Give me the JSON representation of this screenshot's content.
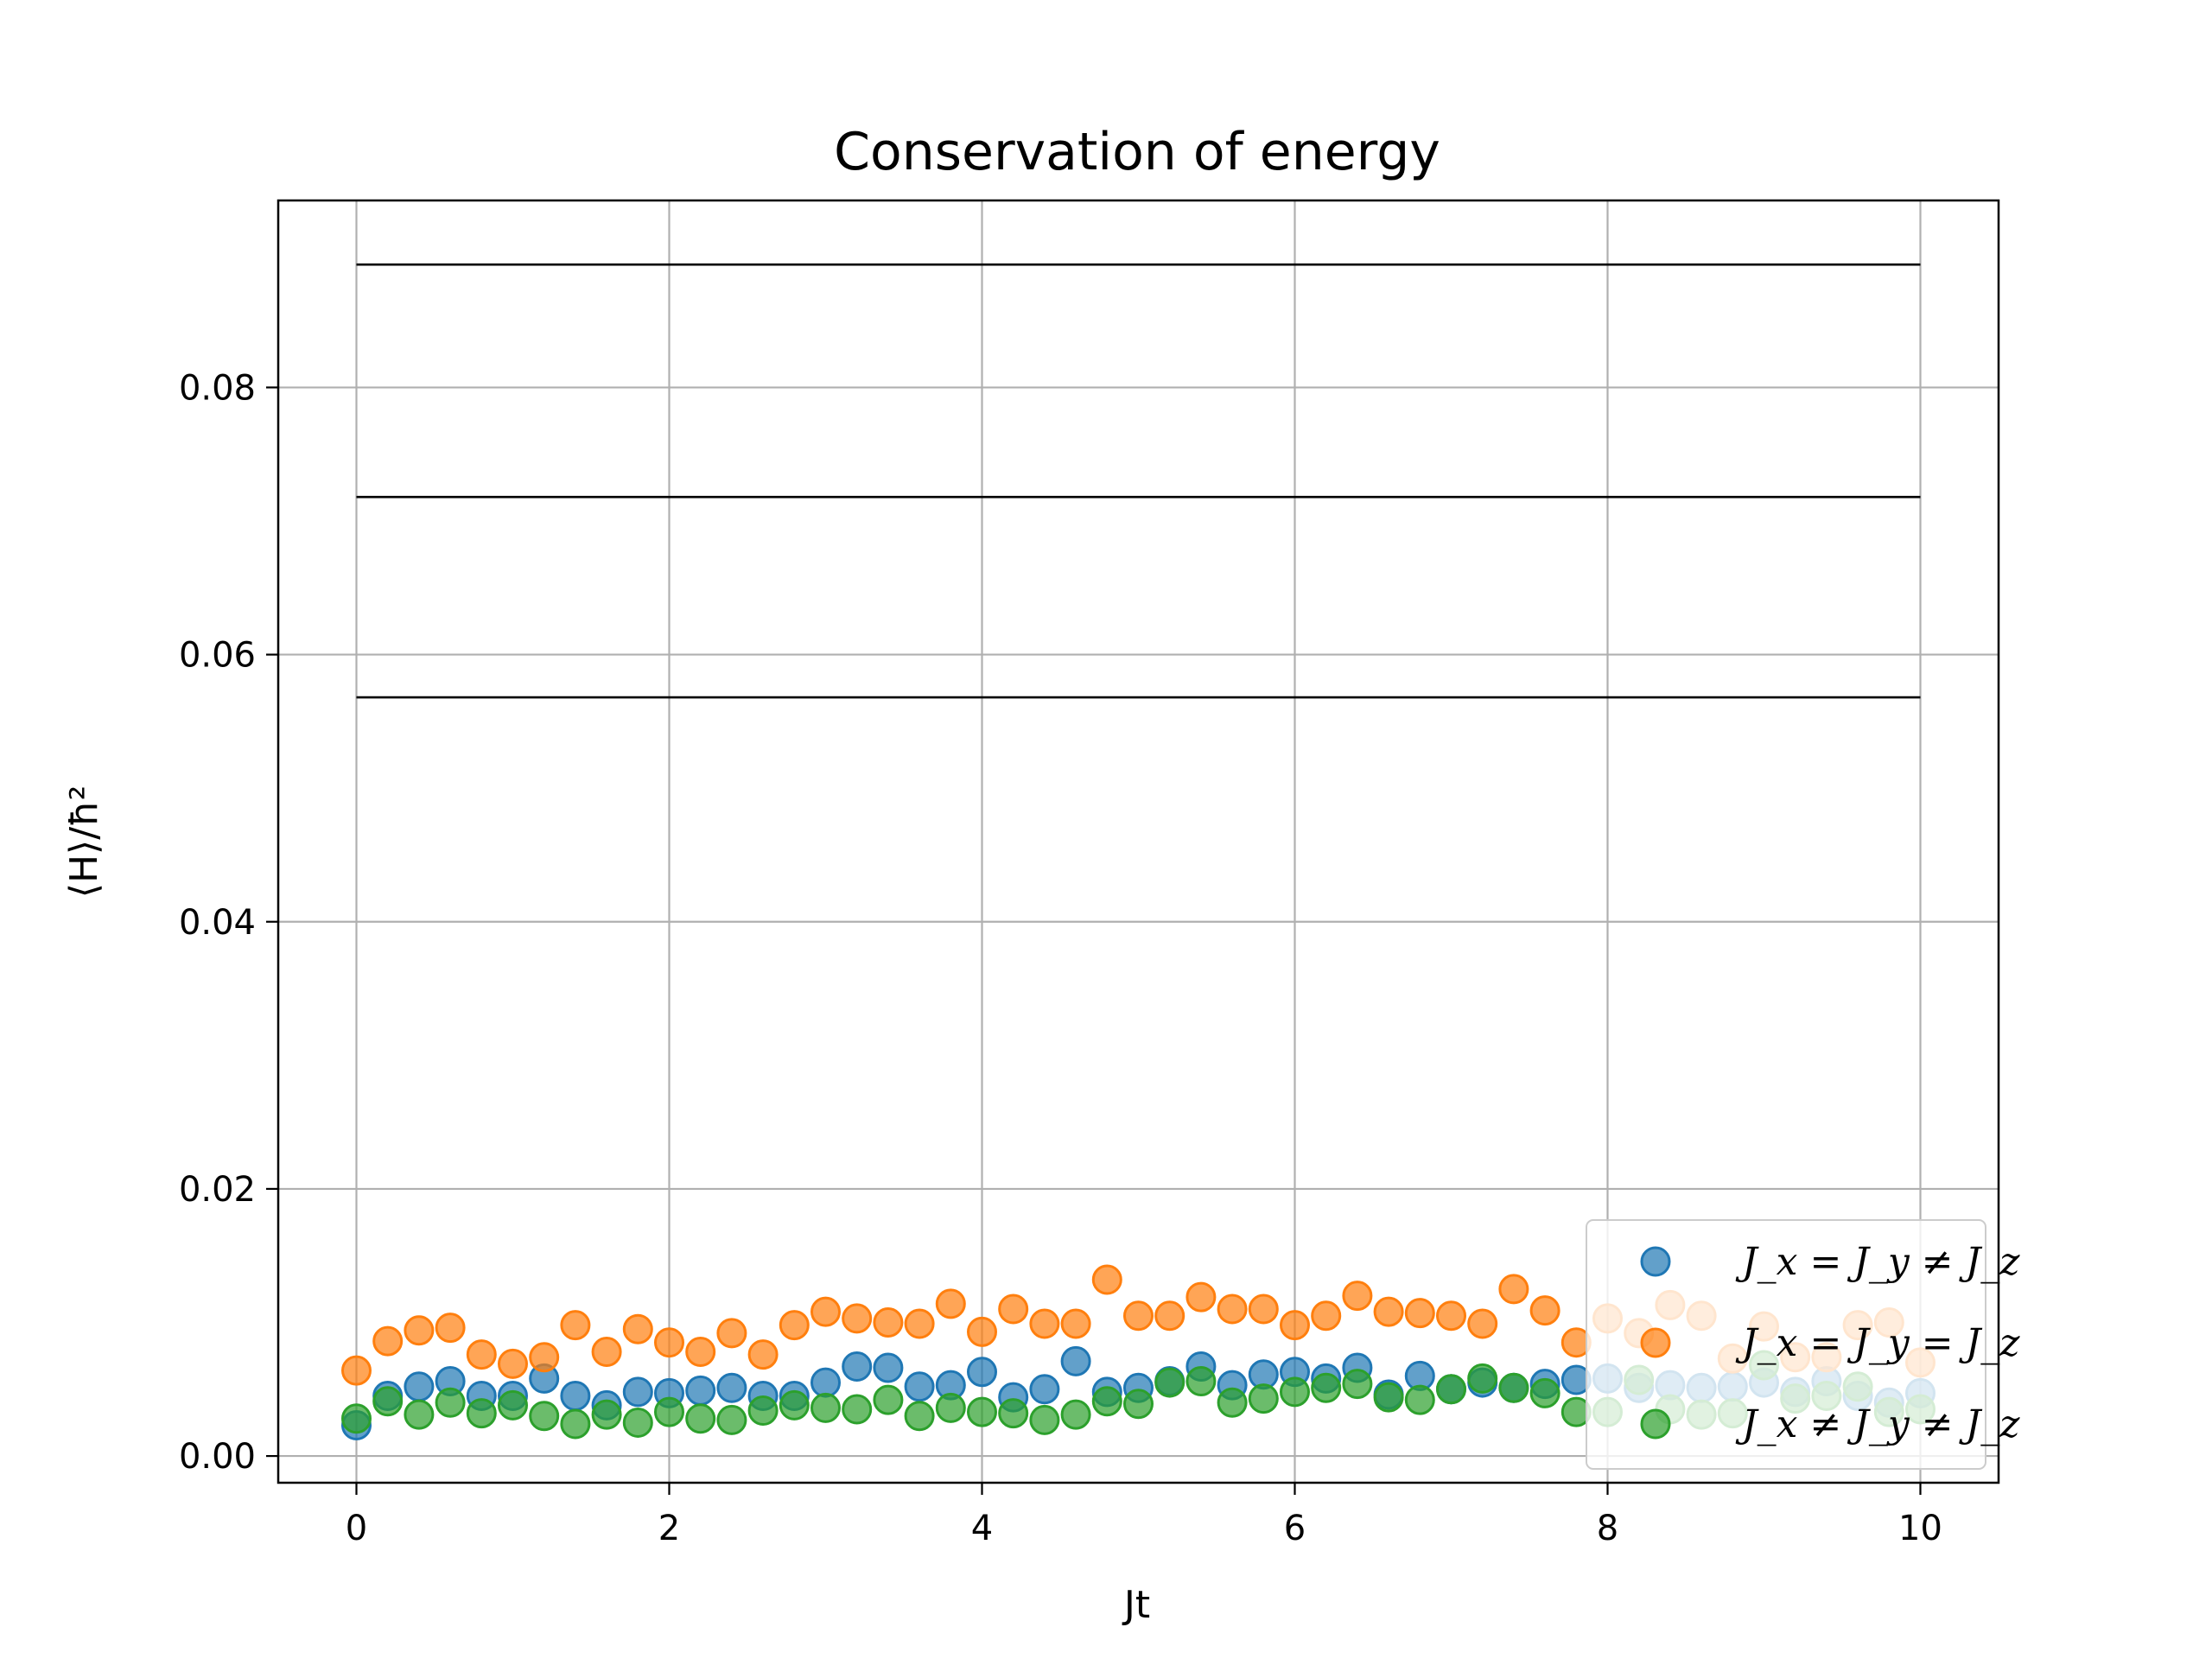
{
  "chart_data": {
    "type": "scatter",
    "title": "Conservation of energy",
    "xlabel": "Jt",
    "ylabel": "⟨H⟩/ħ²",
    "xlim": [
      -0.5,
      10.5
    ],
    "ylim": [
      -0.002,
      0.094
    ],
    "xticks": [
      0,
      2,
      4,
      6,
      8,
      10
    ],
    "xtick_labels": [
      "0",
      "2",
      "4",
      "6",
      "8",
      "10"
    ],
    "yticks": [
      0.0,
      0.02,
      0.04,
      0.06,
      0.08
    ],
    "ytick_labels": [
      "0.00",
      "0.02",
      "0.04",
      "0.06",
      "0.08"
    ],
    "grid": true,
    "legend_position": "lower-right",
    "hlines": [
      {
        "y": 0.0892,
        "x_range": [
          0,
          10
        ],
        "color": "#000000"
      },
      {
        "y": 0.0718,
        "x_range": [
          0,
          10
        ],
        "color": "#000000"
      },
      {
        "y": 0.0568,
        "x_range": [
          0,
          10
        ],
        "color": "#000000"
      }
    ],
    "x": [
      0.0,
      0.2,
      0.4,
      0.6,
      0.8,
      1.0,
      1.2,
      1.4,
      1.6,
      1.8,
      2.0,
      2.2,
      2.4,
      2.6,
      2.8,
      3.0,
      3.2,
      3.4,
      3.6,
      3.8,
      4.0,
      4.2,
      4.4,
      4.6,
      4.8,
      5.0,
      5.2,
      5.4,
      5.6,
      5.8,
      6.0,
      6.2,
      6.4,
      6.6,
      6.8,
      7.0,
      7.2,
      7.4,
      7.6,
      7.8,
      8.0,
      8.2,
      8.4,
      8.6,
      8.8,
      9.0,
      9.2,
      9.4,
      9.6,
      9.8,
      10.0
    ],
    "series": [
      {
        "name": "J_x = J_y ≠ J_z",
        "color": "#1f77b4",
        "values": [
          0.0023,
          0.0045,
          0.0052,
          0.0056,
          0.0045,
          0.0045,
          0.0058,
          0.0045,
          0.0038,
          0.0048,
          0.0047,
          0.0049,
          0.0051,
          0.0045,
          0.0045,
          0.0055,
          0.0067,
          0.0066,
          0.0052,
          0.0053,
          0.0063,
          0.0044,
          0.005,
          0.0071,
          0.0048,
          0.0051,
          0.0056,
          0.0067,
          0.0053,
          0.0061,
          0.0063,
          0.0058,
          0.0066,
          0.0046,
          0.006,
          0.005,
          0.0055,
          0.0051,
          0.0054,
          0.0057,
          0.0058,
          0.0051,
          0.0053,
          0.0051,
          0.0052,
          0.0055,
          0.0048,
          0.0056,
          0.0045,
          0.004,
          0.0047
        ]
      },
      {
        "name": "J_x = J_y = J_z",
        "color": "#ff7f0e",
        "values": [
          0.0064,
          0.0086,
          0.0094,
          0.0096,
          0.0076,
          0.0069,
          0.0074,
          0.0098,
          0.0078,
          0.0095,
          0.0085,
          0.0078,
          0.0092,
          0.0076,
          0.0098,
          0.0108,
          0.0103,
          0.01,
          0.0099,
          0.0114,
          0.0093,
          0.011,
          0.0099,
          0.0099,
          0.0132,
          0.0105,
          0.0105,
          0.0119,
          0.011,
          0.011,
          0.0098,
          0.0105,
          0.012,
          0.0108,
          0.0107,
          0.0105,
          0.0099,
          0.0125,
          0.0109,
          0.0085,
          0.0103,
          0.0092,
          0.0113,
          0.0105,
          0.0073,
          0.0097,
          0.0074,
          0.0074,
          0.0098,
          0.01,
          0.007
        ]
      },
      {
        "name": "J_x ≠ J_y ≠ J_z",
        "color": "#2ca02c",
        "values": [
          0.0028,
          0.0041,
          0.0031,
          0.004,
          0.0032,
          0.0038,
          0.003,
          0.0024,
          0.0031,
          0.0025,
          0.0033,
          0.0028,
          0.0027,
          0.0034,
          0.0038,
          0.0036,
          0.0035,
          0.0042,
          0.003,
          0.0036,
          0.0033,
          0.0032,
          0.0027,
          0.0031,
          0.0041,
          0.0039,
          0.0055,
          0.0056,
          0.004,
          0.0043,
          0.0048,
          0.0051,
          0.0054,
          0.0044,
          0.0042,
          0.005,
          0.0058,
          0.0051,
          0.0047,
          0.0033,
          0.0033,
          0.0057,
          0.0035,
          0.0031,
          0.0032,
          0.0068,
          0.0043,
          0.0045,
          0.0052,
          0.0033,
          0.0035
        ]
      }
    ]
  }
}
